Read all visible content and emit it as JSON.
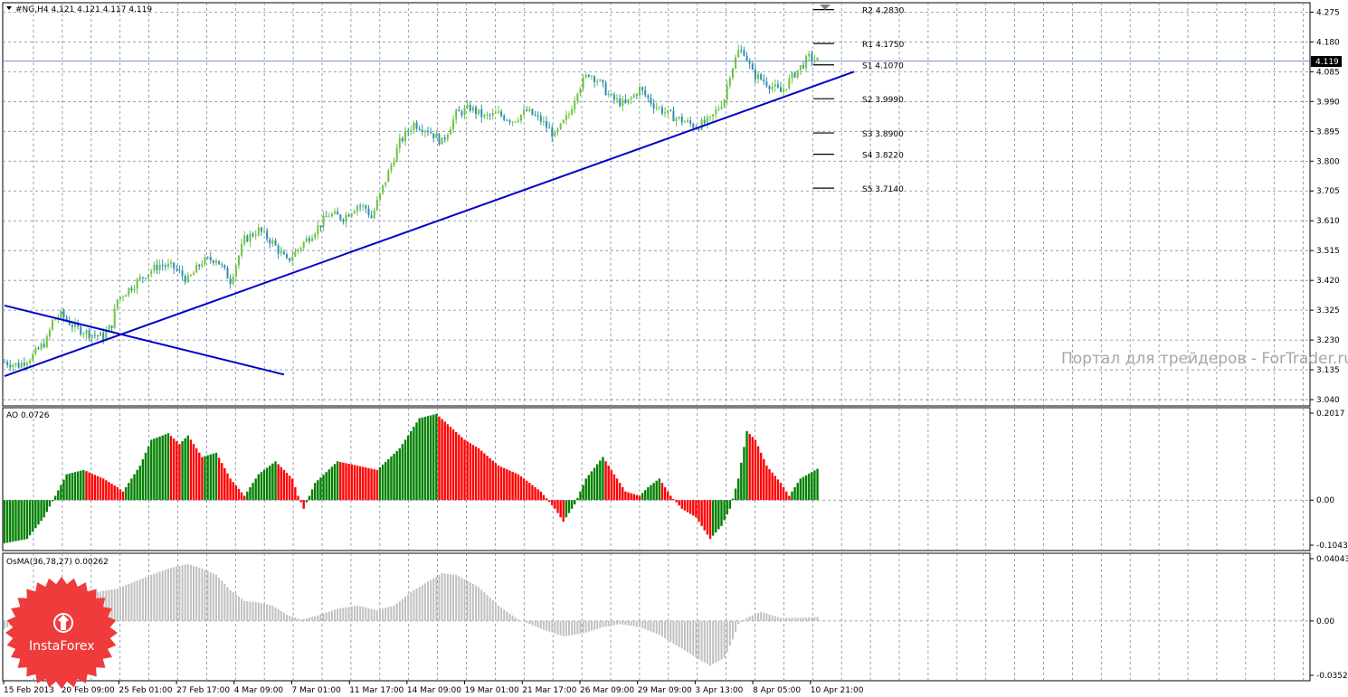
{
  "chart_data": {
    "type": "candlestick",
    "symbol_header": "#NG,H4  4.121 4.121 4.117 4.119",
    "current_price_label": "4.119",
    "current_price": 4.119,
    "price_axis": {
      "ylim": [
        3.02,
        4.305
      ],
      "ticks": [
        "4.275",
        "4.180",
        "4.085",
        "3.990",
        "3.895",
        "3.800",
        "3.705",
        "3.610",
        "3.515",
        "3.420",
        "3.325",
        "3.230",
        "3.135",
        "3.040"
      ]
    },
    "time_axis": {
      "labels": [
        "15 Feb 2013",
        "20 Feb 09:00",
        "25 Feb 01:00",
        "27 Feb 17:00",
        "4 Mar 09:00",
        "7 Mar 01:00",
        "11 Mar 17:00",
        "14 Mar 09:00",
        "19 Mar 01:00",
        "21 Mar 17:00",
        "26 Mar 09:00",
        "29 Mar 09:00",
        "3 Apr 13:00",
        "8 Apr 05:00",
        "10 Apr 21:00"
      ]
    },
    "close_path": [
      [
        0,
        3.16
      ],
      [
        5,
        3.15
      ],
      [
        10,
        3.18
      ],
      [
        15,
        3.23
      ],
      [
        17,
        3.29
      ],
      [
        20,
        3.31
      ],
      [
        25,
        3.27
      ],
      [
        30,
        3.25
      ],
      [
        35,
        3.24
      ],
      [
        38,
        3.28
      ],
      [
        40,
        3.36
      ],
      [
        45,
        3.4
      ],
      [
        50,
        3.44
      ],
      [
        55,
        3.47
      ],
      [
        60,
        3.46
      ],
      [
        65,
        3.42
      ],
      [
        70,
        3.48
      ],
      [
        75,
        3.49
      ],
      [
        80,
        3.42
      ],
      [
        85,
        3.55
      ],
      [
        90,
        3.58
      ],
      [
        95,
        3.54
      ],
      [
        100,
        3.48
      ],
      [
        105,
        3.53
      ],
      [
        110,
        3.58
      ],
      [
        115,
        3.63
      ],
      [
        120,
        3.62
      ],
      [
        125,
        3.66
      ],
      [
        128,
        3.65
      ],
      [
        130,
        3.62
      ],
      [
        135,
        3.74
      ],
      [
        140,
        3.86
      ],
      [
        145,
        3.92
      ],
      [
        150,
        3.9
      ],
      [
        155,
        3.86
      ],
      [
        160,
        3.95
      ],
      [
        165,
        3.97
      ],
      [
        170,
        3.94
      ],
      [
        175,
        3.95
      ],
      [
        180,
        3.93
      ],
      [
        185,
        3.96
      ],
      [
        190,
        3.93
      ],
      [
        195,
        3.88
      ],
      [
        200,
        3.95
      ],
      [
        203,
        4.03
      ],
      [
        207,
        4.08
      ],
      [
        210,
        4.06
      ],
      [
        215,
        4.0
      ],
      [
        220,
        3.98
      ],
      [
        225,
        4.03
      ],
      [
        230,
        3.98
      ],
      [
        235,
        3.95
      ],
      [
        240,
        3.93
      ],
      [
        245,
        3.91
      ],
      [
        250,
        3.93
      ],
      [
        255,
        4.0
      ],
      [
        257,
        4.08
      ],
      [
        260,
        4.15
      ],
      [
        262,
        4.15
      ],
      [
        265,
        4.08
      ],
      [
        270,
        4.05
      ],
      [
        275,
        4.02
      ],
      [
        280,
        4.08
      ],
      [
        285,
        4.13
      ],
      [
        288,
        4.12
      ]
    ],
    "candle_count": 289,
    "trendlines": [
      {
        "x1": 0,
        "y1": 3.115,
        "x2": 301,
        "y2": 4.085
      },
      {
        "x1": 0,
        "y1": 3.34,
        "x2": 99,
        "y2": 3.12
      }
    ],
    "pivot_levels": [
      {
        "label": "R2 4.2830",
        "value": 4.283
      },
      {
        "label": "R1 4.1750",
        "value": 4.175
      },
      {
        "label": "S1 4.1070",
        "value": 4.107
      },
      {
        "label": "S2 3.9990",
        "value": 3.999
      },
      {
        "label": "S3 3.8900",
        "value": 3.89
      },
      {
        "label": "S4 3.8220",
        "value": 3.822
      },
      {
        "label": "S5 3.7140",
        "value": 3.714
      }
    ],
    "ao": {
      "label": "AO 0.0726",
      "axis_ticks": [
        "0.2017",
        "0.00",
        "-0.1043"
      ],
      "ylim": [
        -0.1043,
        0.2017
      ],
      "path": [
        [
          0,
          -0.1
        ],
        [
          8,
          -0.09
        ],
        [
          14,
          -0.04
        ],
        [
          18,
          0.01
        ],
        [
          22,
          0.06
        ],
        [
          28,
          0.07
        ],
        [
          35,
          0.05
        ],
        [
          40,
          0.03
        ],
        [
          42,
          0.02
        ],
        [
          48,
          0.08
        ],
        [
          52,
          0.14
        ],
        [
          58,
          0.155
        ],
        [
          62,
          0.13
        ],
        [
          65,
          0.15
        ],
        [
          70,
          0.1
        ],
        [
          75,
          0.11
        ],
        [
          80,
          0.05
        ],
        [
          85,
          0.01
        ],
        [
          90,
          0.06
        ],
        [
          96,
          0.09
        ],
        [
          102,
          0.05
        ],
        [
          104,
          0.01
        ],
        [
          106,
          -0.02
        ],
        [
          110,
          0.04
        ],
        [
          118,
          0.09
        ],
        [
          125,
          0.08
        ],
        [
          132,
          0.07
        ],
        [
          140,
          0.12
        ],
        [
          147,
          0.19
        ],
        [
          153,
          0.2
        ],
        [
          158,
          0.17
        ],
        [
          163,
          0.14
        ],
        [
          168,
          0.12
        ],
        [
          175,
          0.08
        ],
        [
          182,
          0.06
        ],
        [
          190,
          0.02
        ],
        [
          195,
          -0.02
        ],
        [
          198,
          -0.05
        ],
        [
          202,
          -0.01
        ],
        [
          206,
          0.05
        ],
        [
          212,
          0.1
        ],
        [
          215,
          0.07
        ],
        [
          220,
          0.02
        ],
        [
          225,
          0.01
        ],
        [
          228,
          0.03
        ],
        [
          232,
          0.05
        ],
        [
          236,
          0.01
        ],
        [
          240,
          -0.02
        ],
        [
          245,
          -0.04
        ],
        [
          250,
          -0.09
        ],
        [
          254,
          -0.06
        ],
        [
          257,
          -0.02
        ],
        [
          260,
          0.05
        ],
        [
          263,
          0.16
        ],
        [
          266,
          0.14
        ],
        [
          270,
          0.08
        ],
        [
          275,
          0.04
        ],
        [
          278,
          0.01
        ],
        [
          282,
          0.05
        ],
        [
          288,
          0.0726
        ]
      ]
    },
    "osma": {
      "label": "OsMA(36,78,27) 0.00262",
      "axis_ticks": [
        "0.04043",
        "0.00",
        "-0.03527"
      ],
      "ylim": [
        -0.03527,
        0.04043
      ],
      "path": [
        [
          0,
          -0.005
        ],
        [
          10,
          0.005
        ],
        [
          20,
          0.012
        ],
        [
          30,
          0.018
        ],
        [
          40,
          0.021
        ],
        [
          48,
          0.027
        ],
        [
          55,
          0.032
        ],
        [
          60,
          0.035
        ],
        [
          65,
          0.037
        ],
        [
          70,
          0.034
        ],
        [
          75,
          0.03
        ],
        [
          80,
          0.02
        ],
        [
          85,
          0.013
        ],
        [
          90,
          0.012
        ],
        [
          95,
          0.01
        ],
        [
          100,
          0.004
        ],
        [
          105,
          0.001
        ],
        [
          110,
          0.003
        ],
        [
          118,
          0.008
        ],
        [
          125,
          0.01
        ],
        [
          132,
          0.007
        ],
        [
          138,
          0.01
        ],
        [
          145,
          0.02
        ],
        [
          155,
          0.031
        ],
        [
          160,
          0.03
        ],
        [
          168,
          0.022
        ],
        [
          175,
          0.01
        ],
        [
          182,
          0.001
        ],
        [
          190,
          -0.005
        ],
        [
          198,
          -0.01
        ],
        [
          205,
          -0.008
        ],
        [
          212,
          -0.004
        ],
        [
          218,
          -0.002
        ],
        [
          225,
          -0.004
        ],
        [
          232,
          -0.009
        ],
        [
          240,
          -0.018
        ],
        [
          247,
          -0.026
        ],
        [
          250,
          -0.029
        ],
        [
          255,
          -0.024
        ],
        [
          258,
          -0.012
        ],
        [
          260,
          -0.002
        ],
        [
          263,
          0.002
        ],
        [
          268,
          0.006
        ],
        [
          275,
          0.002
        ],
        [
          282,
          0.002
        ],
        [
          288,
          0.00262
        ]
      ]
    },
    "colors": {
      "bull": "#6cc440",
      "bear": "#2f8fb0",
      "trendline": "#0000c8",
      "ao_up": "#008000",
      "ao_down": "#ff0000",
      "osma": "#c0c0c0",
      "grid": "#7a8ca6",
      "price_line": "#6d86b8"
    }
  },
  "watermark_text": "Портал для трейдеров - ForTrader.ru",
  "logo_text": "InstaForex"
}
